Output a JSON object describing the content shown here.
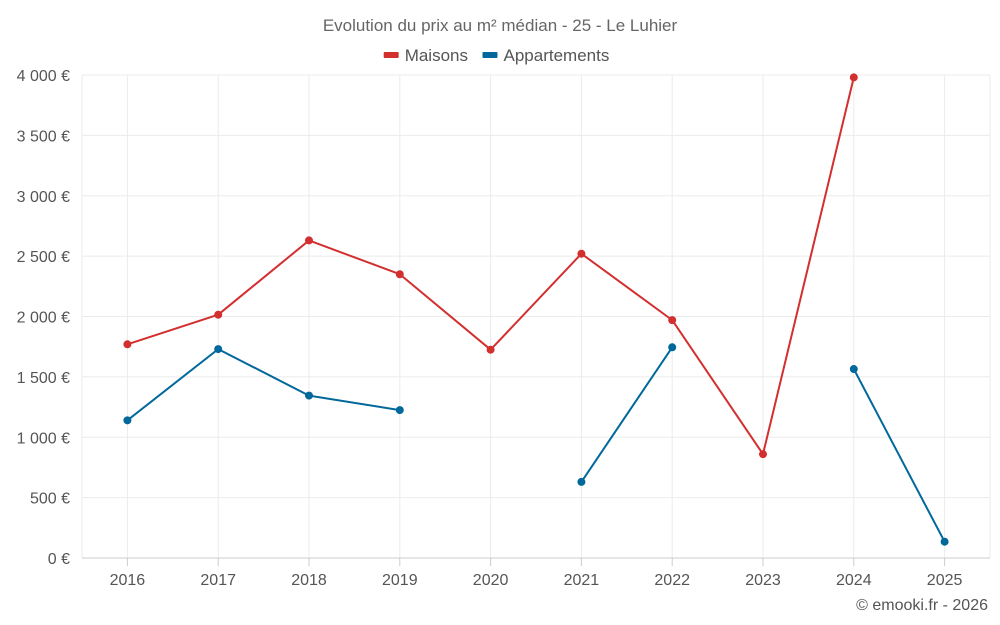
{
  "chart_data": {
    "type": "line",
    "title": "Evolution du prix au m² médian - 25 - Le Luhier",
    "categories": [
      "2016",
      "2017",
      "2018",
      "2019",
      "2020",
      "2021",
      "2022",
      "2023",
      "2024",
      "2025"
    ],
    "series": [
      {
        "name": "Maisons",
        "color": "#d32f2f",
        "values": [
          1770,
          2015,
          2630,
          2350,
          1725,
          2520,
          1970,
          860,
          3980,
          null
        ]
      },
      {
        "name": "Appartements",
        "color": "#01689b",
        "values": [
          1140,
          1730,
          1345,
          1225,
          null,
          630,
          1745,
          null,
          1565,
          135
        ]
      }
    ],
    "ylim": [
      0,
      4000
    ],
    "yticks": [
      0,
      500,
      1000,
      1500,
      2000,
      2500,
      3000,
      3500,
      4000
    ],
    "ytick_labels": [
      "0 €",
      "500 €",
      "1 000 €",
      "1 500 €",
      "2 000 €",
      "2 500 €",
      "3 000 €",
      "3 500 €",
      "4 000 €"
    ],
    "grid": true,
    "legend_position": "top-center",
    "xlabel": "",
    "ylabel": ""
  },
  "credit": "© emooki.fr - 2026"
}
